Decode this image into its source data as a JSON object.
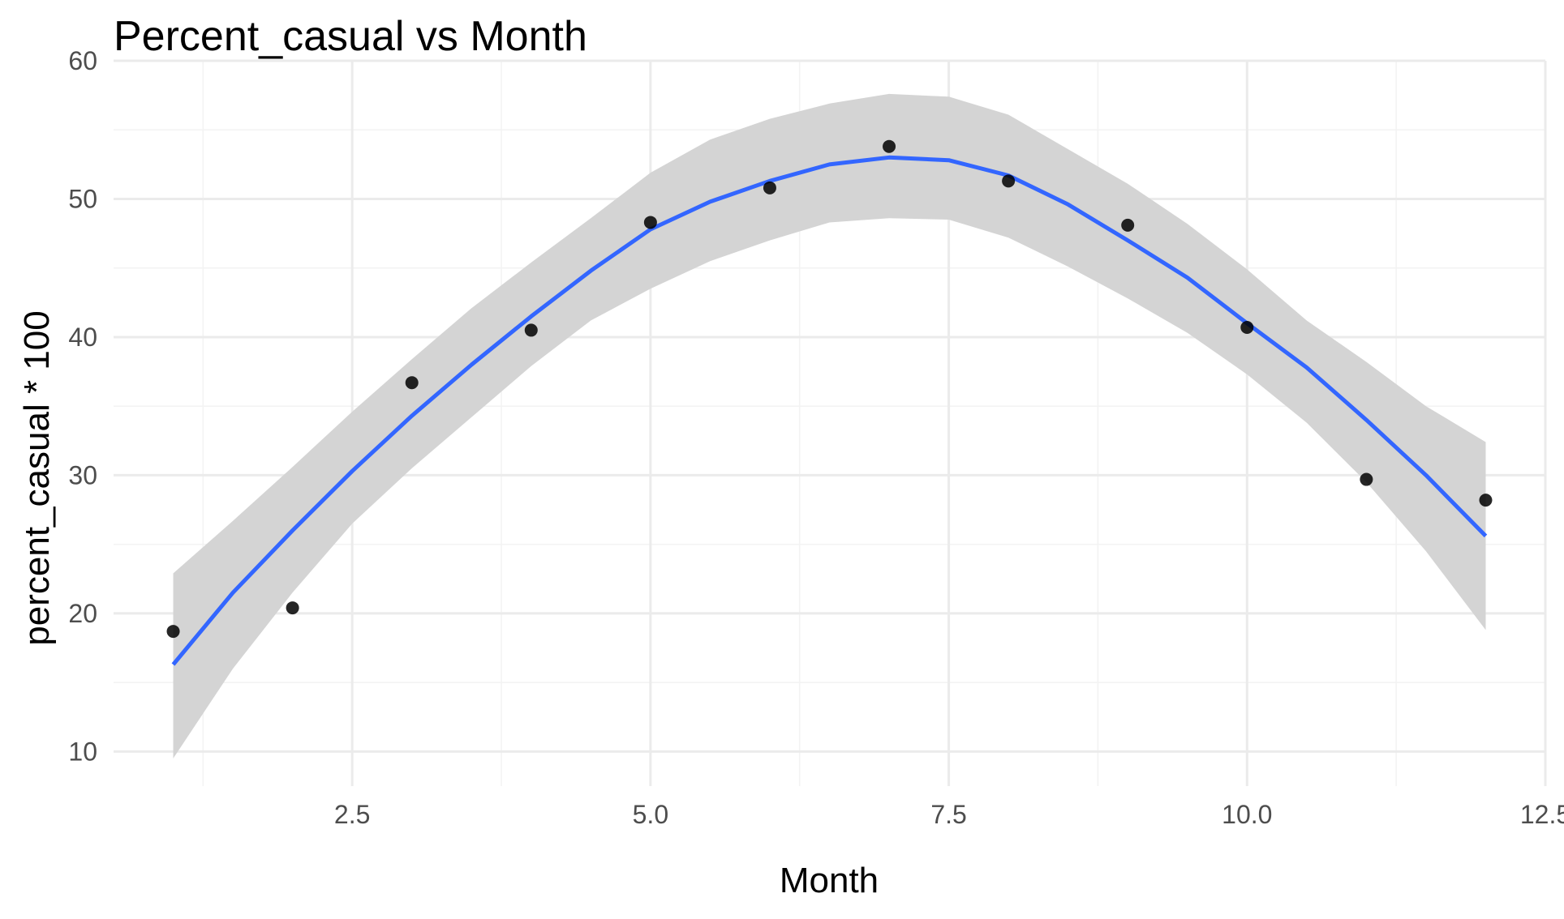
{
  "chart_data": {
    "type": "scatter",
    "title": "Percent_casual vs Month",
    "xlabel": "Month",
    "ylabel": "percent_casual * 100",
    "xlim": [
      0.5,
      12.5
    ],
    "ylim": [
      7.5,
      60
    ],
    "x_ticks": [
      2.5,
      5.0,
      7.5,
      10.0,
      12.5
    ],
    "x_tick_labels": [
      "2.5",
      "5.0",
      "7.5",
      "10.0",
      "12.5"
    ],
    "y_ticks": [
      10,
      20,
      30,
      40,
      50,
      60
    ],
    "y_tick_labels": [
      "10",
      "20",
      "30",
      "40",
      "50",
      "60"
    ],
    "grid": true,
    "points": [
      {
        "x": 1,
        "y": 18.7
      },
      {
        "x": 2,
        "y": 20.4
      },
      {
        "x": 3,
        "y": 36.7
      },
      {
        "x": 4,
        "y": 40.5
      },
      {
        "x": 5,
        "y": 48.3
      },
      {
        "x": 6,
        "y": 50.8
      },
      {
        "x": 7,
        "y": 53.8
      },
      {
        "x": 8,
        "y": 51.3
      },
      {
        "x": 9,
        "y": 48.1
      },
      {
        "x": 10,
        "y": 40.7
      },
      {
        "x": 11,
        "y": 29.7
      },
      {
        "x": 12,
        "y": 28.2
      }
    ],
    "smooth": {
      "x": [
        1,
        1.5,
        2,
        2.5,
        3,
        3.5,
        4,
        4.5,
        5,
        5.5,
        6,
        6.5,
        7,
        7.5,
        8,
        8.5,
        9,
        9.5,
        10,
        10.5,
        11,
        11.5,
        12
      ],
      "y": [
        16.3,
        21.5,
        26.0,
        30.3,
        34.3,
        38.0,
        41.5,
        44.8,
        47.8,
        49.8,
        51.3,
        52.5,
        53.0,
        52.8,
        51.7,
        49.6,
        47.0,
        44.3,
        41.0,
        37.8,
        34.0,
        30.0,
        25.6
      ],
      "lower": [
        9.5,
        16.0,
        21.5,
        26.5,
        30.5,
        34.2,
        37.9,
        41.2,
        43.5,
        45.5,
        47.0,
        48.3,
        48.6,
        48.5,
        47.2,
        45.1,
        42.8,
        40.3,
        37.3,
        33.8,
        29.5,
        24.5,
        18.8
      ],
      "upper": [
        22.9,
        26.7,
        30.6,
        34.6,
        38.4,
        42.1,
        45.4,
        48.6,
        51.9,
        54.3,
        55.8,
        56.9,
        57.6,
        57.4,
        56.1,
        53.6,
        51.1,
        48.2,
        44.9,
        41.2,
        38.2,
        35.0,
        32.4
      ]
    },
    "colors": {
      "point": "#000000",
      "line": "#3366ff",
      "ribbon": "#d4d4d4",
      "grid_major": "#ebebeb",
      "grid_minor": "#f3f3f3"
    }
  }
}
